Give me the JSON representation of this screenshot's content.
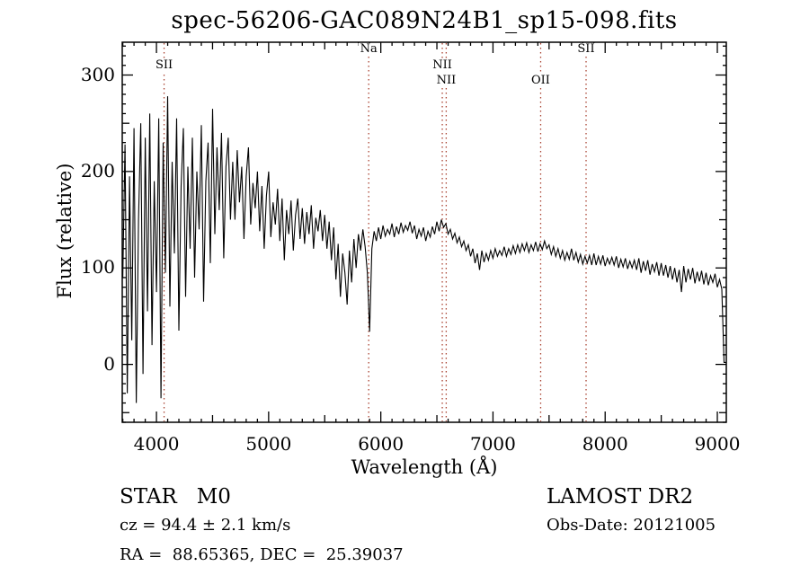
{
  "title": "spec-56206-GAC089N24B1_sp15-098.fits",
  "chart_data": {
    "type": "line",
    "title": "spec-56206-GAC089N24B1_sp15-098.fits",
    "xlabel": "Wavelength (Å)",
    "ylabel": "Flux (relative)",
    "xlim": [
      3695,
      9080
    ],
    "ylim": [
      -60,
      334
    ],
    "xticks": [
      4000,
      5000,
      6000,
      7000,
      8000,
      9000
    ],
    "yticks": [
      0,
      100,
      200,
      300
    ],
    "x_minor_step": 100,
    "x_medium_step": 500,
    "y_minor_step": 10,
    "y_medium_step": 50,
    "grid": false,
    "line_color": "#000000",
    "marker_line_color": "#aa4433",
    "line_markers": [
      {
        "label": "SII",
        "wavelength": 4068,
        "row": 1
      },
      {
        "label": "Na",
        "wavelength": 5892,
        "row": 0
      },
      {
        "label": "NII",
        "wavelength": 6548,
        "row": 1
      },
      {
        "label": "NII",
        "wavelength": 6583,
        "row": 2
      },
      {
        "label": "OII",
        "wavelength": 7425,
        "row": 2
      },
      {
        "label": "SII",
        "wavelength": 7830,
        "row": 0
      }
    ],
    "series": [
      {
        "name": "spectrum",
        "x_start": 3700,
        "x_step": 20,
        "flux": [
          90,
          228,
          -30,
          195,
          25,
          245,
          -40,
          150,
          250,
          -10,
          235,
          55,
          260,
          20,
          190,
          75,
          255,
          -35,
          230,
          95,
          278,
          60,
          210,
          115,
          255,
          35,
          185,
          245,
          70,
          205,
          120,
          235,
          90,
          200,
          140,
          248,
          65,
          190,
          230,
          105,
          265,
          135,
          225,
          160,
          240,
          110,
          205,
          235,
          150,
          210,
          150,
          222,
          168,
          205,
          130,
          195,
          225,
          145,
          188,
          162,
          200,
          138,
          185,
          120,
          175,
          200,
          132,
          168,
          145,
          182,
          128,
          172,
          108,
          160,
          135,
          170,
          118,
          155,
          172,
          130,
          162,
          125,
          158,
          135,
          165,
          120,
          152,
          138,
          160,
          128,
          155,
          120,
          148,
          108,
          142,
          88,
          125,
          70,
          115,
          95,
          62,
          118,
          85,
          130,
          100,
          135,
          118,
          140,
          122,
          95,
          34,
          120,
          138,
          128,
          142,
          130,
          144,
          133,
          140,
          135,
          146,
          132,
          143,
          135,
          147,
          137,
          144,
          139,
          148,
          136,
          144,
          130,
          140,
          133,
          142,
          128,
          138,
          132,
          143,
          135,
          148,
          138,
          150,
          142,
          146,
          135,
          140,
          130,
          136,
          126,
          132,
          122,
          128,
          118,
          124,
          112,
          120,
          105,
          115,
          98,
          118,
          106,
          115,
          108,
          118,
          110,
          120,
          112,
          118,
          113,
          122,
          112,
          120,
          114,
          123,
          115,
          124,
          116,
          125,
          118,
          126,
          116,
          124,
          118,
          127,
          117,
          125,
          119,
          128,
          120,
          124,
          114,
          122,
          112,
          120,
          110,
          118,
          108,
          116,
          109,
          120,
          108,
          116,
          106,
          114,
          104,
          112,
          105,
          113,
          103,
          115,
          103,
          112,
          104,
          113,
          102,
          110,
          104,
          111,
          103,
          112,
          100,
          109,
          101,
          110,
          99,
          107,
          100,
          108,
          98,
          110,
          95,
          107,
          97,
          108,
          93,
          104,
          96,
          106,
          92,
          105,
          92,
          103,
          90,
          102,
          88,
          100,
          85,
          98,
          75,
          102,
          85,
          99,
          88,
          100,
          84,
          96,
          86,
          97,
          83,
          95,
          82,
          92,
          85,
          94,
          80,
          88,
          78,
          2,
          2
        ]
      }
    ]
  },
  "annotations": {
    "class_line": "STAR   M0",
    "cz_line": "cz = 94.4 ± 2.1 km/s",
    "radec_line": "RA =  88.65365, DEC =  25.39037",
    "survey": "LAMOST DR2",
    "obsdate_line": "Obs-Date: 20121005"
  }
}
